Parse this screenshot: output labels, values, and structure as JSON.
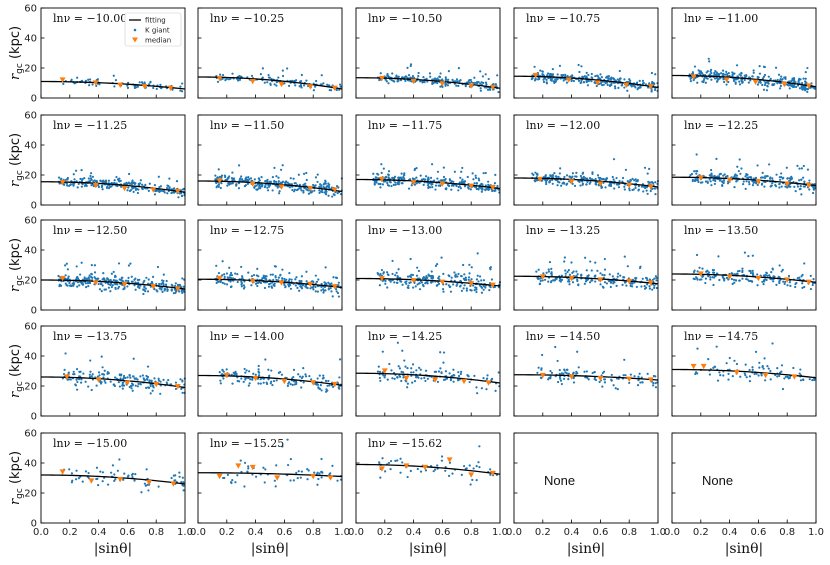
{
  "chart_data": {
    "type": "scatter",
    "xlabel": "|sinθ|",
    "ylabel_prefix": "r",
    "ylabel_sub": "gc",
    "ylabel_unit": " (kpc)",
    "xlim": [
      0.0,
      1.0
    ],
    "ylim": [
      0,
      60
    ],
    "x_ticks": [
      "0.0",
      "0.2",
      "0.4",
      "0.6",
      "0.8",
      "1.0"
    ],
    "y_ticks": [
      "0",
      "20",
      "40",
      "60"
    ],
    "legend": {
      "fit": "fitting",
      "k": "K giant",
      "med": "median"
    },
    "colors": {
      "scatter": "#1f77b4",
      "median": "#ff7f0e",
      "fit": "#000000",
      "frame": "#000000"
    },
    "panels": [
      {
        "label": "lnν = −10.00",
        "fit_a": 11.0,
        "fit_b": 5.0,
        "med_x": [
          0.15,
          0.38,
          0.55,
          0.72,
          0.9
        ],
        "med_y": [
          12,
          10,
          8.5,
          7.5,
          6.5
        ],
        "n": 70,
        "spread": 2.5,
        "xmin": 0.15
      },
      {
        "label": "lnν = −10.25",
        "fit_a": 14.0,
        "fit_b": 8.0,
        "med_x": [
          0.15,
          0.38,
          0.58,
          0.78,
          0.95
        ],
        "med_y": [
          13,
          11,
          9,
          7.5,
          6.5
        ],
        "n": 120,
        "spread": 2.5,
        "xmin": 0.12
      },
      {
        "label": "lnν = −10.50",
        "fit_a": 13.5,
        "fit_b": 7.0,
        "med_x": [
          0.18,
          0.4,
          0.6,
          0.8,
          0.95
        ],
        "med_y": [
          13,
          11,
          9.5,
          8,
          7
        ],
        "n": 200,
        "spread": 2.8,
        "xmin": 0.15
      },
      {
        "label": "lnν = −10.75",
        "fit_a": 14.5,
        "fit_b": 7.5,
        "med_x": [
          0.15,
          0.38,
          0.58,
          0.78,
          0.95
        ],
        "med_y": [
          15,
          12,
          10,
          8.5,
          7.5
        ],
        "n": 300,
        "spread": 3.0,
        "xmin": 0.12
      },
      {
        "label": "lnν = −11.00",
        "fit_a": 15.0,
        "fit_b": 7.5,
        "med_x": [
          0.15,
          0.38,
          0.58,
          0.78,
          0.95
        ],
        "med_y": [
          14,
          12,
          10.5,
          9,
          8
        ],
        "n": 300,
        "spread": 3.5,
        "xmin": 0.12
      },
      {
        "label": "lnν = −11.25",
        "fit_a": 15.5,
        "fit_b": 7.0,
        "med_x": [
          0.15,
          0.38,
          0.58,
          0.78,
          0.95
        ],
        "med_y": [
          15,
          13,
          11,
          10,
          9
        ],
        "n": 250,
        "spread": 3.0,
        "xmin": 0.12
      },
      {
        "label": "lnν = −11.50",
        "fit_a": 16.0,
        "fit_b": 7.0,
        "med_x": [
          0.15,
          0.38,
          0.58,
          0.78,
          0.95
        ],
        "med_y": [
          16,
          14,
          12,
          11,
          10
        ],
        "n": 300,
        "spread": 3.5,
        "xmin": 0.12
      },
      {
        "label": "lnν = −11.75",
        "fit_a": 17.0,
        "fit_b": 6.0,
        "med_x": [
          0.18,
          0.4,
          0.6,
          0.8,
          0.95
        ],
        "med_y": [
          17,
          15,
          14,
          12.5,
          11.5
        ],
        "n": 300,
        "spread": 3.5,
        "xmin": 0.12
      },
      {
        "label": "lnν = −12.00",
        "fit_a": 18.0,
        "fit_b": 6.0,
        "med_x": [
          0.18,
          0.4,
          0.6,
          0.8,
          0.95
        ],
        "med_y": [
          17,
          15.5,
          14,
          13,
          12
        ],
        "n": 250,
        "spread": 4.0,
        "xmin": 0.12
      },
      {
        "label": "lnν = −12.25",
        "fit_a": 18.5,
        "fit_b": 5.5,
        "med_x": [
          0.2,
          0.4,
          0.6,
          0.8,
          0.95
        ],
        "med_y": [
          18,
          16.5,
          15.5,
          14,
          13
        ],
        "n": 250,
        "spread": 4.0,
        "xmin": 0.12
      },
      {
        "label": "lnν = −12.50",
        "fit_a": 20.0,
        "fit_b": 6.0,
        "med_x": [
          0.15,
          0.38,
          0.58,
          0.78,
          0.95
        ],
        "med_y": [
          21,
          18,
          17,
          15.5,
          14
        ],
        "n": 300,
        "spread": 4.0,
        "xmin": 0.12
      },
      {
        "label": "lnν = −12.75",
        "fit_a": 20.5,
        "fit_b": 5.5,
        "med_x": [
          0.15,
          0.38,
          0.58,
          0.78,
          0.95
        ],
        "med_y": [
          21,
          19,
          18,
          17,
          15.5
        ],
        "n": 250,
        "spread": 4.0,
        "xmin": 0.12
      },
      {
        "label": "lnν = −13.00",
        "fit_a": 21.0,
        "fit_b": 5.0,
        "med_x": [
          0.18,
          0.4,
          0.6,
          0.8,
          0.95
        ],
        "med_y": [
          21,
          19.5,
          18.5,
          17.5,
          16.5
        ],
        "n": 220,
        "spread": 4.5,
        "xmin": 0.15
      },
      {
        "label": "lnν = −13.25",
        "fit_a": 22.5,
        "fit_b": 5.0,
        "med_x": [
          0.2,
          0.4,
          0.6,
          0.8,
          0.95
        ],
        "med_y": [
          22,
          21,
          20,
          19,
          18
        ],
        "n": 200,
        "spread": 4.5,
        "xmin": 0.15
      },
      {
        "label": "lnν = −13.50",
        "fit_a": 24.0,
        "fit_b": 5.5,
        "med_x": [
          0.2,
          0.4,
          0.6,
          0.8,
          0.95
        ],
        "med_y": [
          24,
          22,
          21,
          20,
          18.5
        ],
        "n": 180,
        "spread": 4.5,
        "xmin": 0.15
      },
      {
        "label": "lnν = −13.75",
        "fit_a": 26.0,
        "fit_b": 7.0,
        "med_x": [
          0.18,
          0.4,
          0.6,
          0.8,
          0.95
        ],
        "med_y": [
          26,
          24,
          22,
          21,
          19.5
        ],
        "n": 180,
        "spread": 5.0,
        "xmin": 0.15
      },
      {
        "label": "lnν = −14.00",
        "fit_a": 27.0,
        "fit_b": 6.5,
        "med_x": [
          0.2,
          0.4,
          0.6,
          0.8,
          0.95
        ],
        "med_y": [
          27,
          25,
          23,
          22,
          21
        ],
        "n": 150,
        "spread": 5.0,
        "xmin": 0.15
      },
      {
        "label": "lnν = −14.25",
        "fit_a": 28.5,
        "fit_b": 6.5,
        "med_x": [
          0.2,
          0.35,
          0.55,
          0.75,
          0.92
        ],
        "med_y": [
          30,
          25,
          24,
          23,
          22
        ],
        "n": 130,
        "spread": 5.5,
        "xmin": 0.15
      },
      {
        "label": "lnν = −14.50",
        "fit_a": 27.5,
        "fit_b": 3.5,
        "med_x": [
          0.2,
          0.4,
          0.6,
          0.8,
          0.95
        ],
        "med_y": [
          27,
          26,
          25,
          24.5,
          24
        ],
        "n": 110,
        "spread": 5.0,
        "xmin": 0.15
      },
      {
        "label": "lnν = −14.75",
        "fit_a": 31.0,
        "fit_b": 5.5,
        "med_x": [
          0.15,
          0.22,
          0.45,
          0.65,
          0.85
        ],
        "med_y": [
          33,
          33,
          29,
          27,
          26
        ],
        "n": 90,
        "spread": 5.5,
        "xmin": 0.15
      },
      {
        "label": "lnν = −15.00",
        "fit_a": 32.0,
        "fit_b": 6.0,
        "med_x": [
          0.15,
          0.35,
          0.55,
          0.75,
          0.92
        ],
        "med_y": [
          34,
          28,
          29,
          27,
          26
        ],
        "n": 70,
        "spread": 6.0,
        "xmin": 0.15
      },
      {
        "label": "lnν = −15.25",
        "fit_a": 33.5,
        "fit_b": 2.5,
        "med_x": [
          0.15,
          0.28,
          0.38,
          0.55,
          0.8,
          0.92
        ],
        "med_y": [
          31,
          38,
          37,
          30,
          31,
          30
        ],
        "n": 60,
        "spread": 7.0,
        "xmin": 0.15
      },
      {
        "label": "lnν = −15.62",
        "fit_a": 39.0,
        "fit_b": 6.5,
        "med_x": [
          0.18,
          0.35,
          0.48,
          0.65,
          0.8,
          0.95
        ],
        "med_y": [
          36,
          38,
          37,
          42,
          32,
          33
        ],
        "n": 55,
        "spread": 7.0,
        "xmin": 0.15
      },
      {
        "label": "None",
        "empty": true
      },
      {
        "label": "None",
        "empty": true
      }
    ]
  }
}
